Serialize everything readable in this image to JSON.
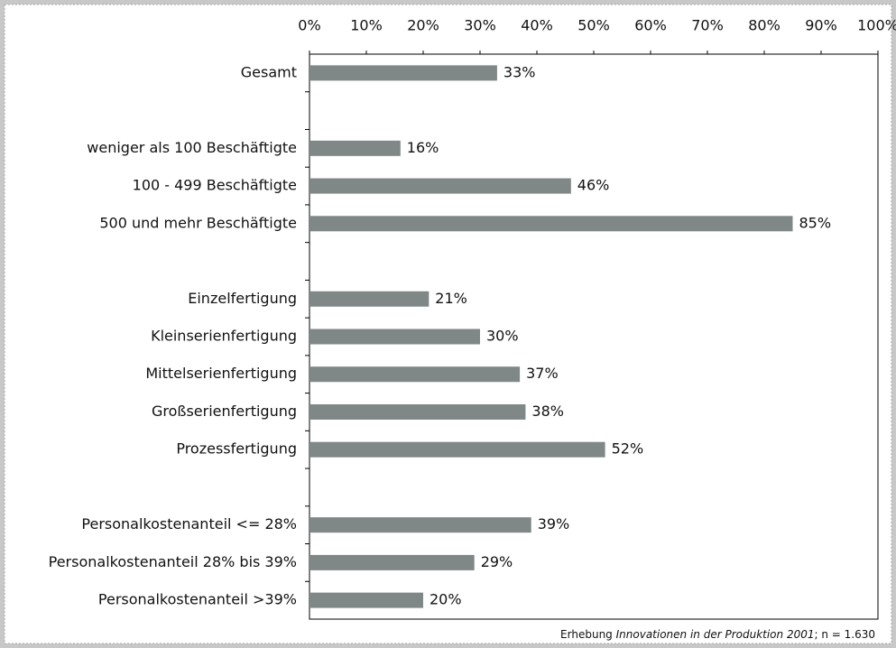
{
  "chart_data": {
    "type": "bar",
    "orientation": "horizontal",
    "categories": [
      "Gesamt",
      null,
      "weniger als 100 Beschäftigte",
      "100 - 499 Beschäftigte",
      "500 und mehr Beschäftigte",
      null,
      "Einzelfertigung",
      "Kleinserienfertigung",
      "Mittelserienfertigung",
      "Großserienfertigung",
      "Prozessfertigung",
      null,
      "Personalkostenanteil <= 28%",
      "Personalkostenanteil 28% bis 39%",
      "Personalkostenanteil >39%"
    ],
    "values": [
      33,
      null,
      16,
      46,
      85,
      null,
      21,
      30,
      37,
      38,
      52,
      null,
      39,
      29,
      20
    ],
    "value_labels": [
      "33%",
      null,
      "16%",
      "46%",
      "85%",
      null,
      "21%",
      "30%",
      "37%",
      "38%",
      "52%",
      null,
      "39%",
      "29%",
      "20%"
    ],
    "color": "#7f8787",
    "xlim": [
      0,
      100
    ],
    "xticks": [
      {
        "value": 0,
        "label": "0%"
      },
      {
        "value": 10,
        "label": "10%"
      },
      {
        "value": 20,
        "label": "20%"
      },
      {
        "value": 30,
        "label": "30%"
      },
      {
        "value": 40,
        "label": "40%"
      },
      {
        "value": 50,
        "label": "50%"
      },
      {
        "value": 60,
        "label": "60%"
      },
      {
        "value": 70,
        "label": "70%"
      },
      {
        "value": 80,
        "label": "80%"
      },
      {
        "value": 90,
        "label": "90%"
      },
      {
        "value": 100,
        "label": "100%"
      }
    ],
    "grid": false,
    "source": [
      "Erhebung",
      "Innovationen in der Produktion 2001",
      "; n = 1.630"
    ]
  }
}
